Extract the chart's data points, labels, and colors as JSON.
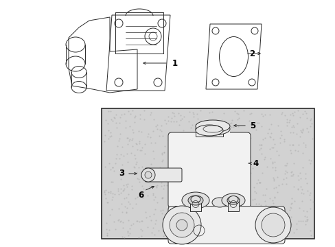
{
  "bg_color": "#ffffff",
  "box_bg": "#d8d8d8",
  "line_color": "#2a2a2a",
  "label_color": "#000000",
  "fig_width": 4.89,
  "fig_height": 3.6,
  "dpi": 100,
  "label_fontsize": 8.5,
  "lw": 0.7
}
